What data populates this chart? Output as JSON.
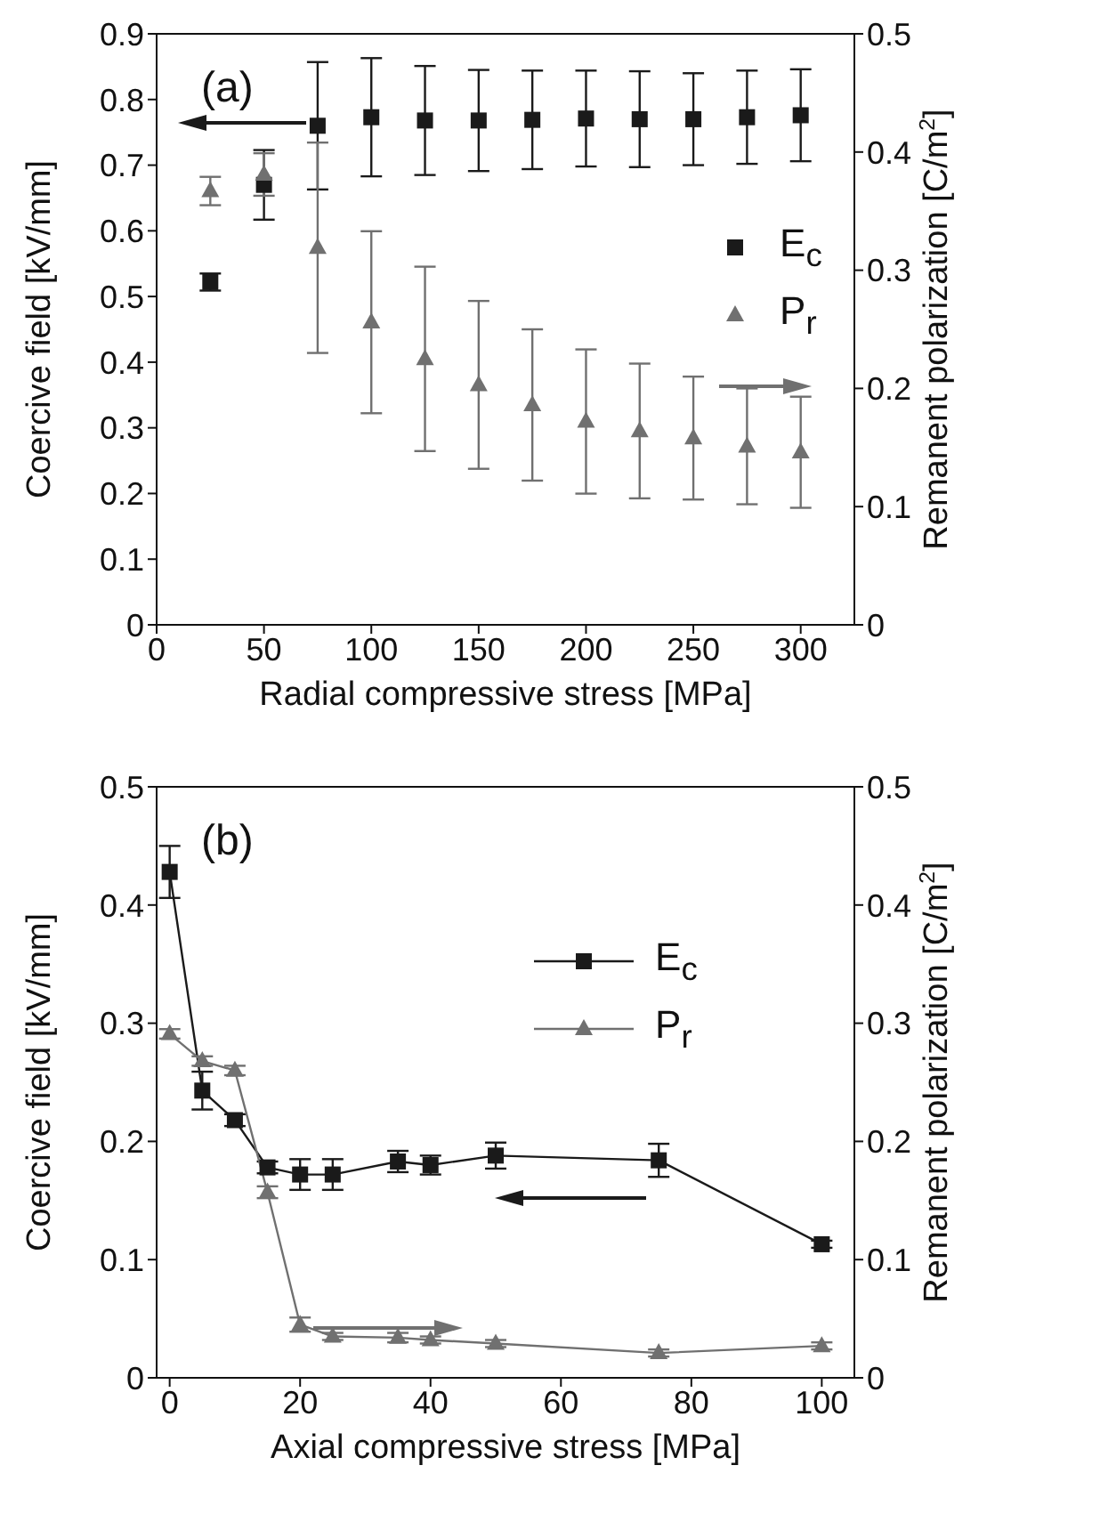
{
  "chart_data": [
    {
      "type": "scatter",
      "xlabel": "Radial compressive stress [MPa]",
      "ylabel": "Coercive field [kV/mm]",
      "y2label": "Remanent polarization [C/m$^{2}$]",
      "annotations": [
        "(a)"
      ],
      "x": [
        25,
        50,
        75,
        100,
        125,
        150,
        175,
        200,
        225,
        250,
        275,
        300
      ],
      "xlim": [
        0,
        325
      ],
      "xticks": [
        0,
        50,
        100,
        150,
        200,
        250,
        300
      ],
      "ylim": [
        0,
        0.9
      ],
      "yticks": [
        0,
        0.1,
        0.2,
        0.3,
        0.4,
        0.5,
        0.6,
        0.7,
        0.8,
        0.9
      ],
      "y2lim": [
        0,
        0.5
      ],
      "y2ticks": [
        0,
        0.1,
        0.2,
        0.3,
        0.4,
        0.5
      ],
      "legend": "right",
      "grid": false,
      "series": [
        {
          "name": "E$_{c}$",
          "color": "#1a1a1a",
          "marker": "square",
          "values": [
            0.522,
            0.67,
            0.76,
            0.773,
            0.768,
            0.768,
            0.769,
            0.771,
            0.77,
            0.77,
            0.773,
            0.776
          ],
          "errors": [
            0.013,
            0.053,
            0.097,
            0.09,
            0.083,
            0.077,
            0.075,
            0.073,
            0.073,
            0.07,
            0.071,
            0.07
          ]
        },
        {
          "name": "P$_{r}$",
          "color": "#707070",
          "marker": "triangle",
          "axis": "y2",
          "values": [
            0.367,
            0.381,
            0.319,
            0.256,
            0.225,
            0.203,
            0.186,
            0.172,
            0.164,
            0.158,
            0.151,
            0.146
          ],
          "errors": [
            0.012,
            0.018,
            0.089,
            0.077,
            0.078,
            0.071,
            0.064,
            0.061,
            0.057,
            0.052,
            0.049,
            0.047
          ]
        }
      ]
    },
    {
      "type": "line",
      "xlabel": "Axial compressive stress [MPa]",
      "ylabel": "Coercive field [kV/mm]",
      "y2label": "Remanent polarization [C/m$^{2}$]",
      "annotations": [
        "(b)"
      ],
      "x": [
        0,
        5,
        10,
        15,
        20,
        25,
        35,
        40,
        50,
        75,
        100
      ],
      "xlim": [
        -2,
        105
      ],
      "xticks": [
        0,
        20,
        40,
        60,
        80,
        100
      ],
      "ylim": [
        0,
        0.5
      ],
      "yticks": [
        0,
        0.1,
        0.2,
        0.3,
        0.4,
        0.5
      ],
      "y2lim": [
        0,
        0.5
      ],
      "y2ticks": [
        0,
        0.1,
        0.2,
        0.3,
        0.4,
        0.5
      ],
      "legend": "top",
      "grid": false,
      "line_style": "solid",
      "series": [
        {
          "name": "E$_{c}$",
          "color": "#1a1a1a",
          "marker": "square",
          "values": [
            0.428,
            0.243,
            0.218,
            0.178,
            0.172,
            0.172,
            0.183,
            0.18,
            0.188,
            0.184,
            0.113
          ],
          "errors": [
            0.022,
            0.016,
            0.005,
            0.005,
            0.013,
            0.013,
            0.009,
            0.008,
            0.011,
            0.014,
            0.003
          ]
        },
        {
          "name": "P$_{r}$",
          "color": "#707070",
          "marker": "triangle",
          "axis": "y2",
          "values": [
            0.291,
            0.268,
            0.26,
            0.157,
            0.045,
            0.035,
            0.034,
            0.032,
            0.029,
            0.021,
            0.027
          ],
          "errors": [
            0.004,
            0.004,
            0.004,
            0.005,
            0.006,
            0.003,
            0.004,
            0.003,
            0.003,
            0.003,
            0.003
          ]
        }
      ]
    }
  ]
}
